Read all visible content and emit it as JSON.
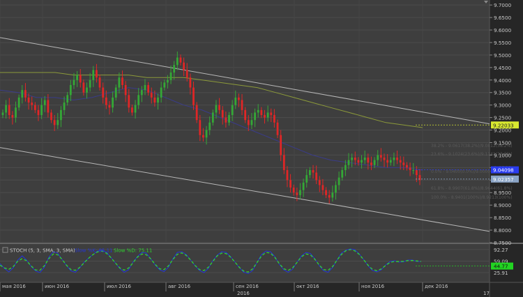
{
  "chart_data": [
    {
      "type": "candlestick",
      "panel": "price",
      "ylim": [
        8.75,
        9.72
      ],
      "y_ticks": [
        "9.7000",
        "9.6500",
        "9.6000",
        "9.5500",
        "9.5000",
        "9.4500",
        "9.4000",
        "9.3500",
        "9.3000",
        "9.2500",
        "9.2000",
        "9.1500",
        "9.1000",
        "9.0500",
        "9.0000",
        "8.9500",
        "8.9000",
        "8.8500",
        "8.8000",
        "8.7500"
      ],
      "price_badges": [
        {
          "value": "9.22033",
          "color": "#d8e830"
        },
        {
          "value": "9.04098",
          "color": "#2a3cf0"
        },
        {
          "value": "9.02357",
          "color": "#8aa4c6"
        }
      ],
      "colors": {
        "up": "#34a836",
        "down": "#e02626",
        "ma_long": "#8c9a3a",
        "ma_short": "#3a3c8a",
        "channel": "#b8b8b8"
      },
      "channel": [
        {
          "x": "start",
          "y": 9.57
        },
        {
          "x": "end",
          "y": 9.225
        },
        {
          "x": "start_lower",
          "y": 9.13
        },
        {
          "x": "end_lower",
          "y": 8.795
        }
      ],
      "fib_labels": [
        "38.2% - 9.0617(38.2%)/9.0812(38.2%)",
        "23.6% - 9.1024(23.6%)/9.1141(23.6%)",
        "0.0% - 9.0400(0.0%)/9.0000(0.0%)",
        "61.8% - 8.9907(61.8%)/8.9644(61.8%)",
        "100.0% - 8.9401(100%)/8.9213(100%)"
      ],
      "candles_close": [
        9.27,
        9.3,
        9.26,
        9.25,
        9.29,
        9.33,
        9.36,
        9.33,
        9.31,
        9.3,
        9.28,
        9.26,
        9.3,
        9.32,
        9.27,
        9.24,
        9.22,
        9.24,
        9.28,
        9.31,
        9.34,
        9.38,
        9.4,
        9.42,
        9.39,
        9.35,
        9.37,
        9.4,
        9.44,
        9.41,
        9.37,
        9.33,
        9.3,
        9.29,
        9.33,
        9.37,
        9.41,
        9.38,
        9.34,
        9.29,
        9.27,
        9.3,
        9.34,
        9.36,
        9.38,
        9.35,
        9.33,
        9.31,
        9.33,
        9.37,
        9.39,
        9.4,
        9.43,
        9.46,
        9.49,
        9.47,
        9.44,
        9.41,
        9.37,
        9.3,
        9.24,
        9.18,
        9.17,
        9.2,
        9.23,
        9.27,
        9.3,
        9.28,
        9.25,
        9.23,
        9.26,
        9.3,
        9.33,
        9.32,
        9.28,
        9.24,
        9.22,
        9.24,
        9.27,
        9.28,
        9.26,
        9.25,
        9.27,
        9.26,
        9.23,
        9.18,
        9.1,
        9.04,
        9.0,
        8.97,
        8.95,
        8.94,
        8.96,
        8.99,
        9.02,
        9.04,
        9.03,
        9.0,
        8.98,
        8.96,
        8.94,
        8.93,
        8.95,
        8.98,
        9.01,
        9.04,
        9.06,
        9.08,
        9.09,
        9.08,
        9.07,
        9.08,
        9.09,
        9.07,
        9.06,
        9.08,
        9.1,
        9.09,
        9.08,
        9.07,
        9.08,
        9.09,
        9.08,
        9.07,
        9.06,
        9.05,
        9.04,
        9.04,
        9.02,
        9.0
      ],
      "ma_long": [
        9.43,
        9.43,
        9.43,
        9.43,
        9.42,
        9.42,
        9.42,
        9.42,
        9.41,
        9.41,
        9.41,
        9.4,
        9.39,
        9.38,
        9.37,
        9.35,
        9.33,
        9.31,
        9.29,
        9.27,
        9.25,
        9.23,
        9.22,
        9.21
      ],
      "ma_short": [
        9.36,
        9.35,
        9.33,
        9.33,
        9.32,
        9.33,
        9.35,
        9.37,
        9.36,
        9.33,
        9.3,
        9.28,
        9.25,
        9.22,
        9.19,
        9.16,
        9.13,
        9.1,
        9.08,
        9.07,
        9.06,
        9.05,
        9.05,
        9.04
      ]
    },
    {
      "type": "line",
      "panel": "stochastic",
      "title": "STOCH (5, 3, SMA, 3, SMA)",
      "series": [
        {
          "name": "Slow %K: 85.11",
          "color": "#2436d8"
        },
        {
          "name": "Slow %D: 75.11",
          "color": "#2fd42f"
        }
      ],
      "ylim": [
        0,
        100
      ],
      "y_ticks": [
        "92.27",
        "59.09",
        "25.91"
      ],
      "badge": {
        "value": "44.77",
        "color": "#22d322"
      },
      "values": [
        52,
        38,
        28,
        40,
        62,
        74,
        62,
        44,
        31,
        26,
        41,
        70,
        86,
        82,
        64,
        46,
        31,
        27,
        40,
        56,
        68,
        78,
        88,
        90,
        85,
        70,
        54,
        38,
        27,
        34,
        56,
        72,
        84,
        82,
        66,
        48,
        34,
        29,
        41,
        66,
        84,
        86,
        78,
        62,
        46,
        32,
        26,
        38,
        60,
        76,
        86,
        84,
        72,
        56,
        40,
        27,
        23,
        32,
        56,
        78,
        88,
        86,
        72,
        50,
        34,
        27,
        36,
        56,
        74,
        84,
        81,
        66,
        46,
        31,
        27,
        40,
        62,
        82,
        90,
        94,
        92,
        80,
        64,
        46,
        32,
        28,
        34,
        48,
        58,
        60,
        56,
        57,
        62,
        62,
        58,
        58
      ]
    }
  ],
  "x_axis": {
    "labels": [
      "мая 2016",
      "июн 2016",
      "июл 2016",
      "авг 2016",
      "сен 2016",
      "окт 2016",
      "ноя 2016",
      "дек 2016"
    ],
    "year_label": "2016",
    "corner_label": "17"
  }
}
